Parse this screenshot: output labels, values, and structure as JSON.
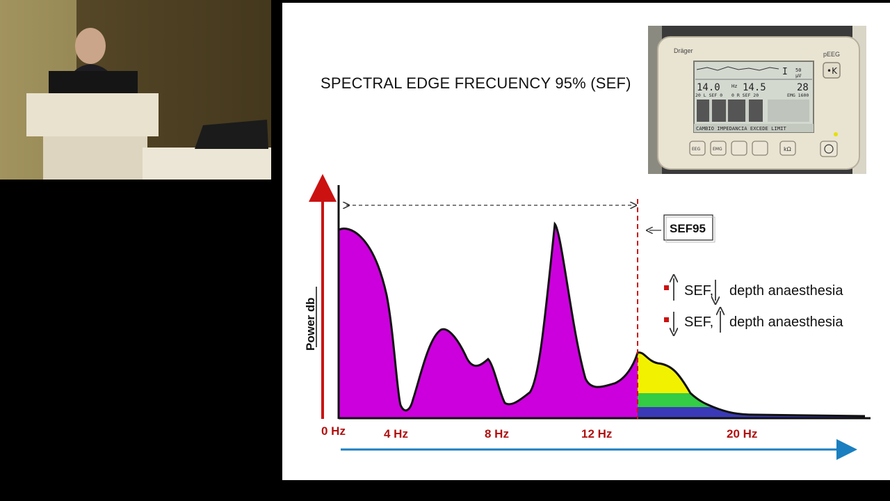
{
  "slide": {
    "title": "SPECTRAL EDGE FRECUENCY 95% (SEF)",
    "sef_label": "SEF95",
    "y_axis_label": "Power db",
    "x_tick_labels": [
      "0 Hz",
      "4 Hz",
      "8 Hz",
      "12 Hz",
      "20 Hz"
    ],
    "legend": [
      {
        "prefix": "SEF,",
        "arrow_first": "up",
        "arrow_second": "down",
        "text": "depth anaesthesia"
      },
      {
        "prefix": "SEF,",
        "arrow_first": "down",
        "arrow_second": "up",
        "text": "depth anaesthesia"
      }
    ]
  },
  "device": {
    "brand": "Dräger",
    "mode": "pEEG",
    "lcd_value_left": "14.0",
    "lcd_unit_left": "Hz",
    "lcd_value_mid": "14.5",
    "lcd_value_right": "28",
    "lcd_scale": "50",
    "lcd_scale_unit": "μV",
    "lcd_row2_left": "20 L SEF 0",
    "lcd_row2_mid": "0 R SEF 20",
    "lcd_row2_right": "EMG 1600",
    "lcd_status": "CAMBIO IMPEDANCIA EXCEDE LIMIT",
    "buttons": [
      "EEG",
      "EMG",
      "",
      "",
      "kΩ",
      ""
    ]
  },
  "colors": {
    "spectrum_fill": "#cc00dd",
    "band_yellow": "#f2f200",
    "band_green": "#33cc44",
    "band_blue": "#3a3ab8",
    "axis_red": "#cc1111",
    "axis_blue": "#1a7fc0",
    "sef_line": "#cc1111"
  }
}
